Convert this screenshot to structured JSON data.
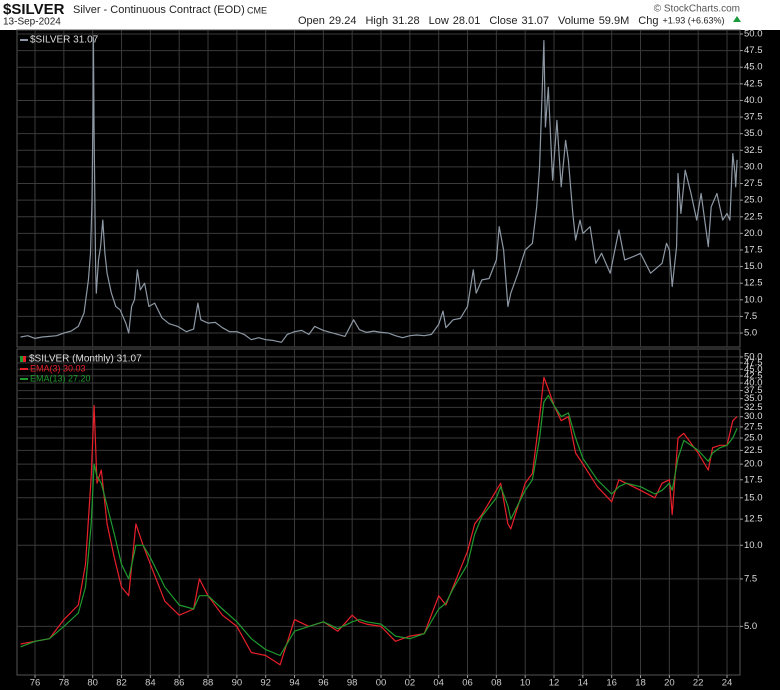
{
  "header": {
    "symbol": "$SILVER",
    "description": "Silver - Continuous Contract (EOD)",
    "exchange": "CME",
    "date": "13-Sep-2024",
    "copyright": "© StockCharts.com",
    "stats": [
      {
        "label": "Open",
        "value": "29.24"
      },
      {
        "label": "High",
        "value": "31.28"
      },
      {
        "label": "Low",
        "value": "28.01"
      },
      {
        "label": "Close",
        "value": "31.07"
      },
      {
        "label": "Volume",
        "value": "59.9M"
      },
      {
        "label": "Chg",
        "value": "+1.93 (+6.63%)"
      }
    ]
  },
  "chart_data": [
    {
      "type": "line",
      "grid": true,
      "xlim": [
        1974.75,
        2024.9
      ],
      "ylim": [
        2.9,
        50.6
      ],
      "yticks": [
        {
          "value": 5,
          "label": "5.0"
        },
        7.5,
        {
          "value": 10,
          "label": "10.0"
        },
        12.5,
        {
          "value": 15,
          "label": "15.0"
        },
        17.5,
        {
          "value": 20,
          "label": "20.0"
        },
        22.5,
        {
          "value": 25,
          "label": "25.0"
        },
        27.5,
        {
          "value": 30,
          "label": "30.0"
        },
        32.5,
        {
          "value": 35,
          "label": "35.0"
        },
        37.5,
        {
          "value": 40,
          "label": "40.0"
        },
        42.5,
        {
          "value": 45,
          "label": "45.0"
        },
        47.5,
        {
          "value": 50,
          "label": "50.0"
        }
      ],
      "x": [
        1975.0,
        1975.5,
        1976.0,
        1976.5,
        1977.0,
        1977.5,
        1978.0,
        1978.5,
        1979.0,
        1979.4,
        1979.7,
        1979.85,
        1979.95,
        1980.02,
        1980.05,
        1980.1,
        1980.2,
        1980.25,
        1980.4,
        1980.55,
        1980.7,
        1980.85,
        1981.0,
        1981.3,
        1981.6,
        1981.9,
        1982.3,
        1982.5,
        1982.7,
        1982.9,
        1983.1,
        1983.3,
        1983.6,
        1983.9,
        1984.3,
        1984.8,
        1985.3,
        1985.9,
        1986.5,
        1987.0,
        1987.3,
        1987.5,
        1988,
        1988.5,
        1989,
        1989.5,
        1990,
        1990.5,
        1991,
        1991.5,
        1992,
        1992.5,
        1993.1,
        1993.5,
        1994,
        1994.5,
        1995,
        1995.4,
        1996,
        1996.5,
        1997,
        1997.5,
        1998.1,
        1998.5,
        1999,
        1999.5,
        2000,
        2000.5,
        2001,
        2001.5,
        2002,
        2002.5,
        2003,
        2003.5,
        2004,
        2004.3,
        2004.5,
        2005,
        2005.5,
        2006,
        2006.4,
        2006.6,
        2007,
        2007.5,
        2008,
        2008.2,
        2008.5,
        2008.8,
        2009,
        2009.5,
        2010,
        2010.5,
        2010.8,
        2011.0,
        2011.3,
        2011.4,
        2011.6,
        2011.9,
        2012.2,
        2012.5,
        2012.8,
        2013.0,
        2013.3,
        2013.5,
        2013.8,
        2014,
        2014.5,
        2014.9,
        2015.3,
        2015.9,
        2016.5,
        2016.9,
        2017.5,
        2018,
        2018.7,
        2019.5,
        2019.8,
        2020.0,
        2020.2,
        2020.5,
        2020.6,
        2020.8,
        2021.1,
        2021.5,
        2021.9,
        2022.2,
        2022.7,
        2022.9,
        2023.3,
        2023.7,
        2024.0,
        2024.2,
        2024.4,
        2024.55,
        2024.6,
        2024.7
      ],
      "series": [
        {
          "name": "$SILVER 31.07",
          "color": "#8d98a4",
          "values": [
            4.4,
            4.6,
            4.2,
            4.4,
            4.5,
            4.6,
            5.0,
            5.3,
            6.0,
            8.0,
            13,
            17,
            25,
            38,
            49.5,
            35,
            15,
            11,
            16,
            18,
            22,
            17,
            14,
            11,
            9,
            8.5,
            6.5,
            5.0,
            9,
            10,
            14.5,
            11.5,
            12.5,
            9,
            9.5,
            7.3,
            6.4,
            6,
            5.2,
            5.6,
            9.5,
            7,
            6.5,
            6.6,
            5.8,
            5.2,
            5.2,
            4.8,
            4.0,
            4.3,
            4.0,
            3.9,
            3.6,
            4.8,
            5.2,
            5.4,
            4.8,
            6.0,
            5.4,
            5.1,
            4.8,
            4.5,
            7.0,
            5.5,
            5.1,
            5.3,
            5.1,
            5.0,
            4.6,
            4.3,
            4.6,
            4.7,
            4.6,
            4.8,
            6.3,
            8.3,
            5.8,
            7.0,
            7.2,
            9.0,
            14.5,
            11,
            13,
            13.2,
            16,
            21,
            17.5,
            9,
            11,
            14,
            17.5,
            18.5,
            24,
            30,
            49,
            36,
            42,
            28,
            37,
            27,
            34,
            31,
            23,
            19,
            22,
            20,
            21,
            15.5,
            17,
            14,
            20.5,
            16,
            16.5,
            17,
            14,
            15.5,
            18.5,
            17.5,
            12,
            18,
            29,
            23,
            29.5,
            26,
            22,
            26,
            18,
            24,
            26,
            22,
            23,
            22,
            32,
            29,
            27,
            31.07
          ]
        }
      ]
    },
    {
      "type": "line",
      "grid": true,
      "log_scale": true,
      "label": "$SILVER (Monthly) 31.07",
      "xlim": [
        1974.75,
        2024.9
      ],
      "ylim": [
        3.3,
        53.5
      ],
      "xticks": [
        {
          "value": 1976,
          "label": "76"
        },
        {
          "value": 1978,
          "label": "78"
        },
        {
          "value": 1980,
          "label": "80"
        },
        {
          "value": 1982,
          "label": "82"
        },
        {
          "value": 1984,
          "label": "84"
        },
        {
          "value": 1986,
          "label": "86"
        },
        {
          "value": 1988,
          "label": "88"
        },
        {
          "value": 1990,
          "label": "90"
        },
        {
          "value": 1992,
          "label": "92"
        },
        {
          "value": 1994,
          "label": "94"
        },
        {
          "value": 1996,
          "label": "96"
        },
        {
          "value": 1998,
          "label": "98"
        },
        {
          "value": 2000,
          "label": "00"
        },
        {
          "value": 2002,
          "label": "02"
        },
        {
          "value": 2004,
          "label": "04"
        },
        {
          "value": 2006,
          "label": "06"
        },
        {
          "value": 2008,
          "label": "08"
        },
        {
          "value": 2010,
          "label": "10"
        },
        {
          "value": 2012,
          "label": "12"
        },
        {
          "value": 2014,
          "label": "14"
        },
        {
          "value": 2016,
          "label": "16"
        },
        {
          "value": 2018,
          "label": "18"
        },
        {
          "value": 2020,
          "label": "20"
        },
        {
          "value": 2022,
          "label": "22"
        },
        {
          "value": 2024,
          "label": "24"
        }
      ],
      "yticks": [
        {
          "value": 5,
          "label": "5.0"
        },
        7.5,
        {
          "value": 10,
          "label": "10.0"
        },
        12.5,
        {
          "value": 15,
          "label": "15.0"
        },
        17.5,
        {
          "value": 20,
          "label": "20.0"
        },
        22.5,
        {
          "value": 25,
          "label": "25.0"
        },
        27.5,
        {
          "value": 30,
          "label": "30.0"
        },
        32.5,
        {
          "value": 35,
          "label": "35.0"
        },
        37.5,
        {
          "value": 40,
          "label": "40.0"
        },
        42.5,
        {
          "value": 45,
          "label": "45.0"
        },
        47.5,
        {
          "value": 50,
          "label": "50.0"
        }
      ],
      "x": [
        1975,
        1976,
        1977,
        1978,
        1979,
        1979.5,
        1979.9,
        1980.1,
        1980.3,
        1980.6,
        1981,
        1981.5,
        1982,
        1982.5,
        1983,
        1983.5,
        1984,
        1985,
        1986,
        1987,
        1987.4,
        1988,
        1989,
        1990,
        1991,
        1992,
        1993,
        1994,
        1995,
        1996,
        1997,
        1998,
        1998.5,
        1999,
        2000,
        2001,
        2002,
        2003,
        2004,
        2004.5,
        2005,
        2006,
        2006.5,
        2007,
        2008,
        2008.3,
        2008.8,
        2009,
        2010,
        2010.5,
        2011,
        2011.3,
        2011.6,
        2012,
        2012.5,
        2013,
        2013.5,
        2014,
        2015,
        2016,
        2016.5,
        2017,
        2018,
        2019,
        2019.5,
        2020,
        2020.2,
        2020.6,
        2021,
        2022,
        2022.7,
        2023,
        2023.5,
        2024,
        2024.4,
        2024.7
      ],
      "series": [
        {
          "name": "EMA(3) 30.03",
          "color": "#e8202a",
          "values": [
            4.3,
            4.4,
            4.5,
            5.3,
            6.0,
            8.5,
            18,
            33,
            17,
            19,
            12,
            9,
            7,
            6.5,
            12,
            10,
            8.5,
            6.2,
            5.5,
            5.8,
            7.5,
            6.5,
            5.5,
            5.0,
            4.0,
            3.9,
            3.6,
            5.3,
            5.0,
            5.2,
            4.8,
            5.5,
            5.2,
            5.1,
            5.0,
            4.4,
            4.6,
            4.7,
            6.5,
            6.0,
            7.0,
            9.5,
            12,
            13,
            16,
            17,
            12,
            11.5,
            17,
            18.5,
            30,
            42,
            38,
            33,
            29,
            30,
            22,
            20,
            16.5,
            14.5,
            17.5,
            17,
            16,
            15,
            17,
            17.5,
            13,
            25,
            26,
            22,
            19,
            23,
            23.5,
            23.5,
            29,
            30.03
          ]
        },
        {
          "name": "EMA(13) 27.20",
          "color": "#1f9a2e",
          "values": [
            4.2,
            4.4,
            4.5,
            5.0,
            5.6,
            7.0,
            12,
            20,
            18,
            17,
            14,
            11,
            8.5,
            7.5,
            10,
            10,
            9,
            7,
            6,
            5.8,
            6.5,
            6.5,
            5.8,
            5.2,
            4.5,
            4.1,
            3.9,
            4.8,
            5.0,
            5.2,
            4.9,
            5.2,
            5.3,
            5.2,
            5.1,
            4.6,
            4.5,
            4.7,
            5.8,
            6.1,
            6.9,
            8.5,
            11,
            12.8,
            15,
            16.5,
            14,
            12.5,
            16,
            17.5,
            25,
            34,
            36,
            33,
            30,
            31,
            25,
            21,
            17.5,
            15.5,
            16.5,
            17,
            16.5,
            15.5,
            16,
            17,
            16,
            21,
            24.5,
            22.5,
            20.5,
            22,
            23,
            23.5,
            25,
            27.2
          ]
        }
      ]
    }
  ]
}
